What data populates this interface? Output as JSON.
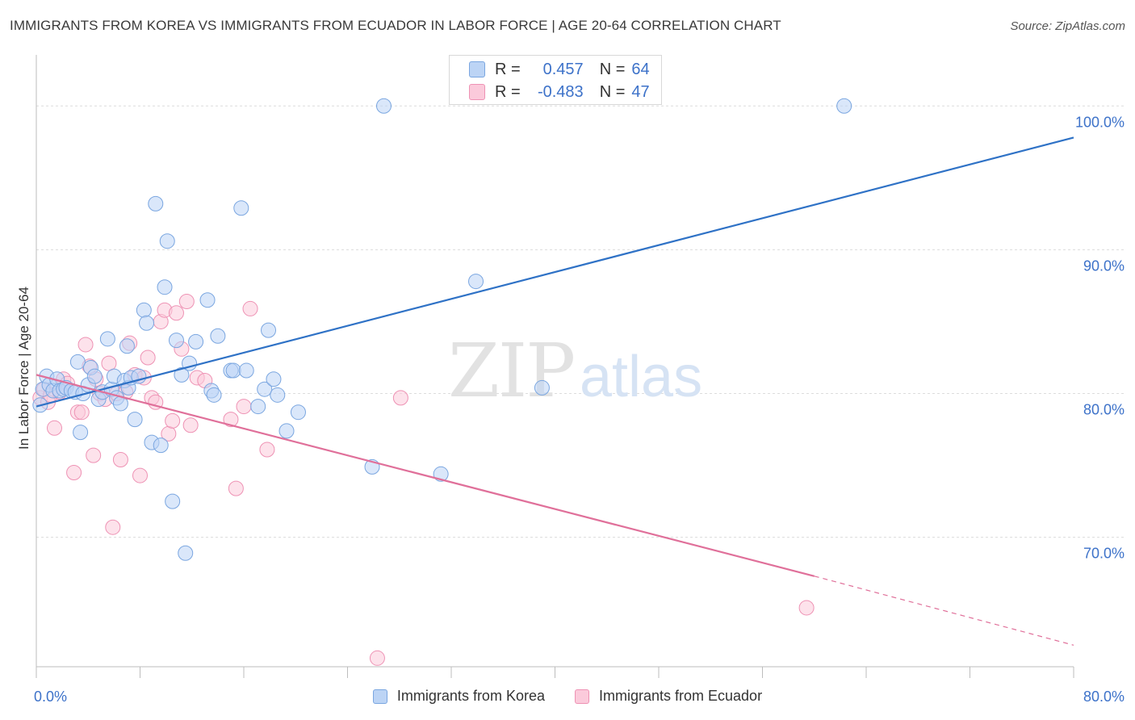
{
  "header": {
    "title": "IMMIGRANTS FROM KOREA VS IMMIGRANTS FROM ECUADOR IN LABOR FORCE | AGE 20-64 CORRELATION CHART",
    "source": "Source: ZipAtlas.com"
  },
  "stats": {
    "korea": {
      "r_label": "R =",
      "r_value": "0.457",
      "n_label": "N =",
      "n_value": "64"
    },
    "ecuador": {
      "r_label": "R =",
      "r_value": "-0.483",
      "n_label": "N =",
      "n_value": "47"
    }
  },
  "legend": {
    "korea": "Immigrants from Korea",
    "ecuador": "Immigrants from Ecuador"
  },
  "watermark": {
    "zip": "ZIP",
    "atlas": "atlas"
  },
  "colors": {
    "korea_fill": "#bcd4f5",
    "korea_stroke": "#7aa6e0",
    "korea_line": "#2f72c6",
    "ecuador_fill": "#fbcadb",
    "ecuador_stroke": "#ee92b4",
    "ecuador_line": "#e0709a",
    "tick_label": "#3d72c9",
    "grid": "#dcdcdc"
  },
  "chart_data": {
    "type": "scatter",
    "title": "IMMIGRANTS FROM KOREA VS IMMIGRANTS FROM ECUADOR IN LABOR FORCE | AGE 20-64 CORRELATION CHART",
    "xlabel": "",
    "ylabel": "In Labor Force | Age 20-64",
    "xlim": [
      0,
      80
    ],
    "ylim": [
      61,
      104
    ],
    "x_tick_labels": [
      "0.0%",
      "80.0%"
    ],
    "y_ticks": [
      70,
      80,
      90,
      100
    ],
    "y_tick_labels": [
      "70.0%",
      "80.0%",
      "90.0%",
      "100.0%"
    ],
    "grid": true,
    "legend_position": "bottom",
    "series": [
      {
        "name": "Immigrants from Korea",
        "r": 0.457,
        "n": 64,
        "trend": {
          "x": [
            0.0,
            80.0
          ],
          "y": [
            79.1,
            97.8
          ]
        },
        "points": [
          [
            0.3,
            79.2
          ],
          [
            0.5,
            80.3
          ],
          [
            0.8,
            81.2
          ],
          [
            1.0,
            80.6
          ],
          [
            1.3,
            80.2
          ],
          [
            1.6,
            81.0
          ],
          [
            1.8,
            80.2
          ],
          [
            2.1,
            80.3
          ],
          [
            2.3,
            80.4
          ],
          [
            2.7,
            80.2
          ],
          [
            3.0,
            80.1
          ],
          [
            3.2,
            82.2
          ],
          [
            3.4,
            77.3
          ],
          [
            3.6,
            80.0
          ],
          [
            4.0,
            80.6
          ],
          [
            4.2,
            81.8
          ],
          [
            4.5,
            81.2
          ],
          [
            4.8,
            79.6
          ],
          [
            5.1,
            80.1
          ],
          [
            5.5,
            83.8
          ],
          [
            5.8,
            80.3
          ],
          [
            6.0,
            81.2
          ],
          [
            6.2,
            79.7
          ],
          [
            6.5,
            79.3
          ],
          [
            6.8,
            80.9
          ],
          [
            7.1,
            80.4
          ],
          [
            7.3,
            81.1
          ],
          [
            7.6,
            78.2
          ],
          [
            7.9,
            81.2
          ],
          [
            8.3,
            85.8
          ],
          [
            8.5,
            84.9
          ],
          [
            8.9,
            76.6
          ],
          [
            9.2,
            93.2
          ],
          [
            9.6,
            76.4
          ],
          [
            9.9,
            87.4
          ],
          [
            10.1,
            90.6
          ],
          [
            10.5,
            72.5
          ],
          [
            10.8,
            83.7
          ],
          [
            11.2,
            81.3
          ],
          [
            11.5,
            68.9
          ],
          [
            11.8,
            82.1
          ],
          [
            12.3,
            83.6
          ],
          [
            13.2,
            86.5
          ],
          [
            13.5,
            80.2
          ],
          [
            14.0,
            84.0
          ],
          [
            15.0,
            81.6
          ],
          [
            15.2,
            81.6
          ],
          [
            15.8,
            92.9
          ],
          [
            16.2,
            81.6
          ],
          [
            17.1,
            79.1
          ],
          [
            17.6,
            80.3
          ],
          [
            17.9,
            84.4
          ],
          [
            18.3,
            81.0
          ],
          [
            18.6,
            79.9
          ],
          [
            19.3,
            77.4
          ],
          [
            20.2,
            78.7
          ],
          [
            25.9,
            74.9
          ],
          [
            26.8,
            100.0
          ],
          [
            31.2,
            74.4
          ],
          [
            33.9,
            87.8
          ],
          [
            39.0,
            80.4
          ],
          [
            62.3,
            100.0
          ],
          [
            13.7,
            79.9
          ],
          [
            7.0,
            83.3
          ]
        ]
      },
      {
        "name": "Immigrants from Ecuador",
        "r": -0.483,
        "n": 47,
        "trend": {
          "x": [
            0.0,
            60.0
          ],
          "y": [
            81.3,
            67.3
          ]
        },
        "trend_dashed": {
          "x": [
            60.0,
            80.0
          ],
          "y": [
            67.3,
            62.5
          ]
        },
        "points": [
          [
            0.3,
            79.7
          ],
          [
            0.6,
            80.3
          ],
          [
            0.9,
            79.4
          ],
          [
            1.1,
            79.9
          ],
          [
            1.4,
            77.6
          ],
          [
            1.8,
            80.1
          ],
          [
            2.1,
            81.0
          ],
          [
            2.4,
            80.7
          ],
          [
            2.9,
            74.5
          ],
          [
            3.2,
            78.7
          ],
          [
            3.5,
            78.7
          ],
          [
            3.8,
            83.4
          ],
          [
            4.1,
            81.9
          ],
          [
            4.4,
            75.7
          ],
          [
            4.6,
            81.0
          ],
          [
            4.9,
            80.0
          ],
          [
            5.3,
            79.6
          ],
          [
            5.6,
            82.1
          ],
          [
            5.9,
            70.7
          ],
          [
            6.2,
            80.0
          ],
          [
            6.5,
            75.4
          ],
          [
            6.9,
            80.1
          ],
          [
            7.2,
            83.5
          ],
          [
            7.6,
            81.3
          ],
          [
            8.0,
            74.3
          ],
          [
            8.3,
            81.1
          ],
          [
            8.6,
            82.5
          ],
          [
            8.9,
            79.7
          ],
          [
            9.2,
            79.4
          ],
          [
            9.6,
            85.0
          ],
          [
            9.9,
            85.8
          ],
          [
            10.2,
            77.2
          ],
          [
            10.5,
            78.1
          ],
          [
            10.8,
            85.6
          ],
          [
            11.2,
            83.1
          ],
          [
            11.6,
            86.4
          ],
          [
            11.9,
            77.8
          ],
          [
            12.4,
            81.1
          ],
          [
            13.0,
            80.9
          ],
          [
            15.0,
            78.2
          ],
          [
            15.4,
            73.4
          ],
          [
            16.0,
            79.1
          ],
          [
            16.5,
            85.9
          ],
          [
            17.8,
            76.1
          ],
          [
            28.1,
            79.7
          ],
          [
            26.3,
            61.6
          ],
          [
            59.4,
            65.1
          ]
        ]
      }
    ]
  }
}
